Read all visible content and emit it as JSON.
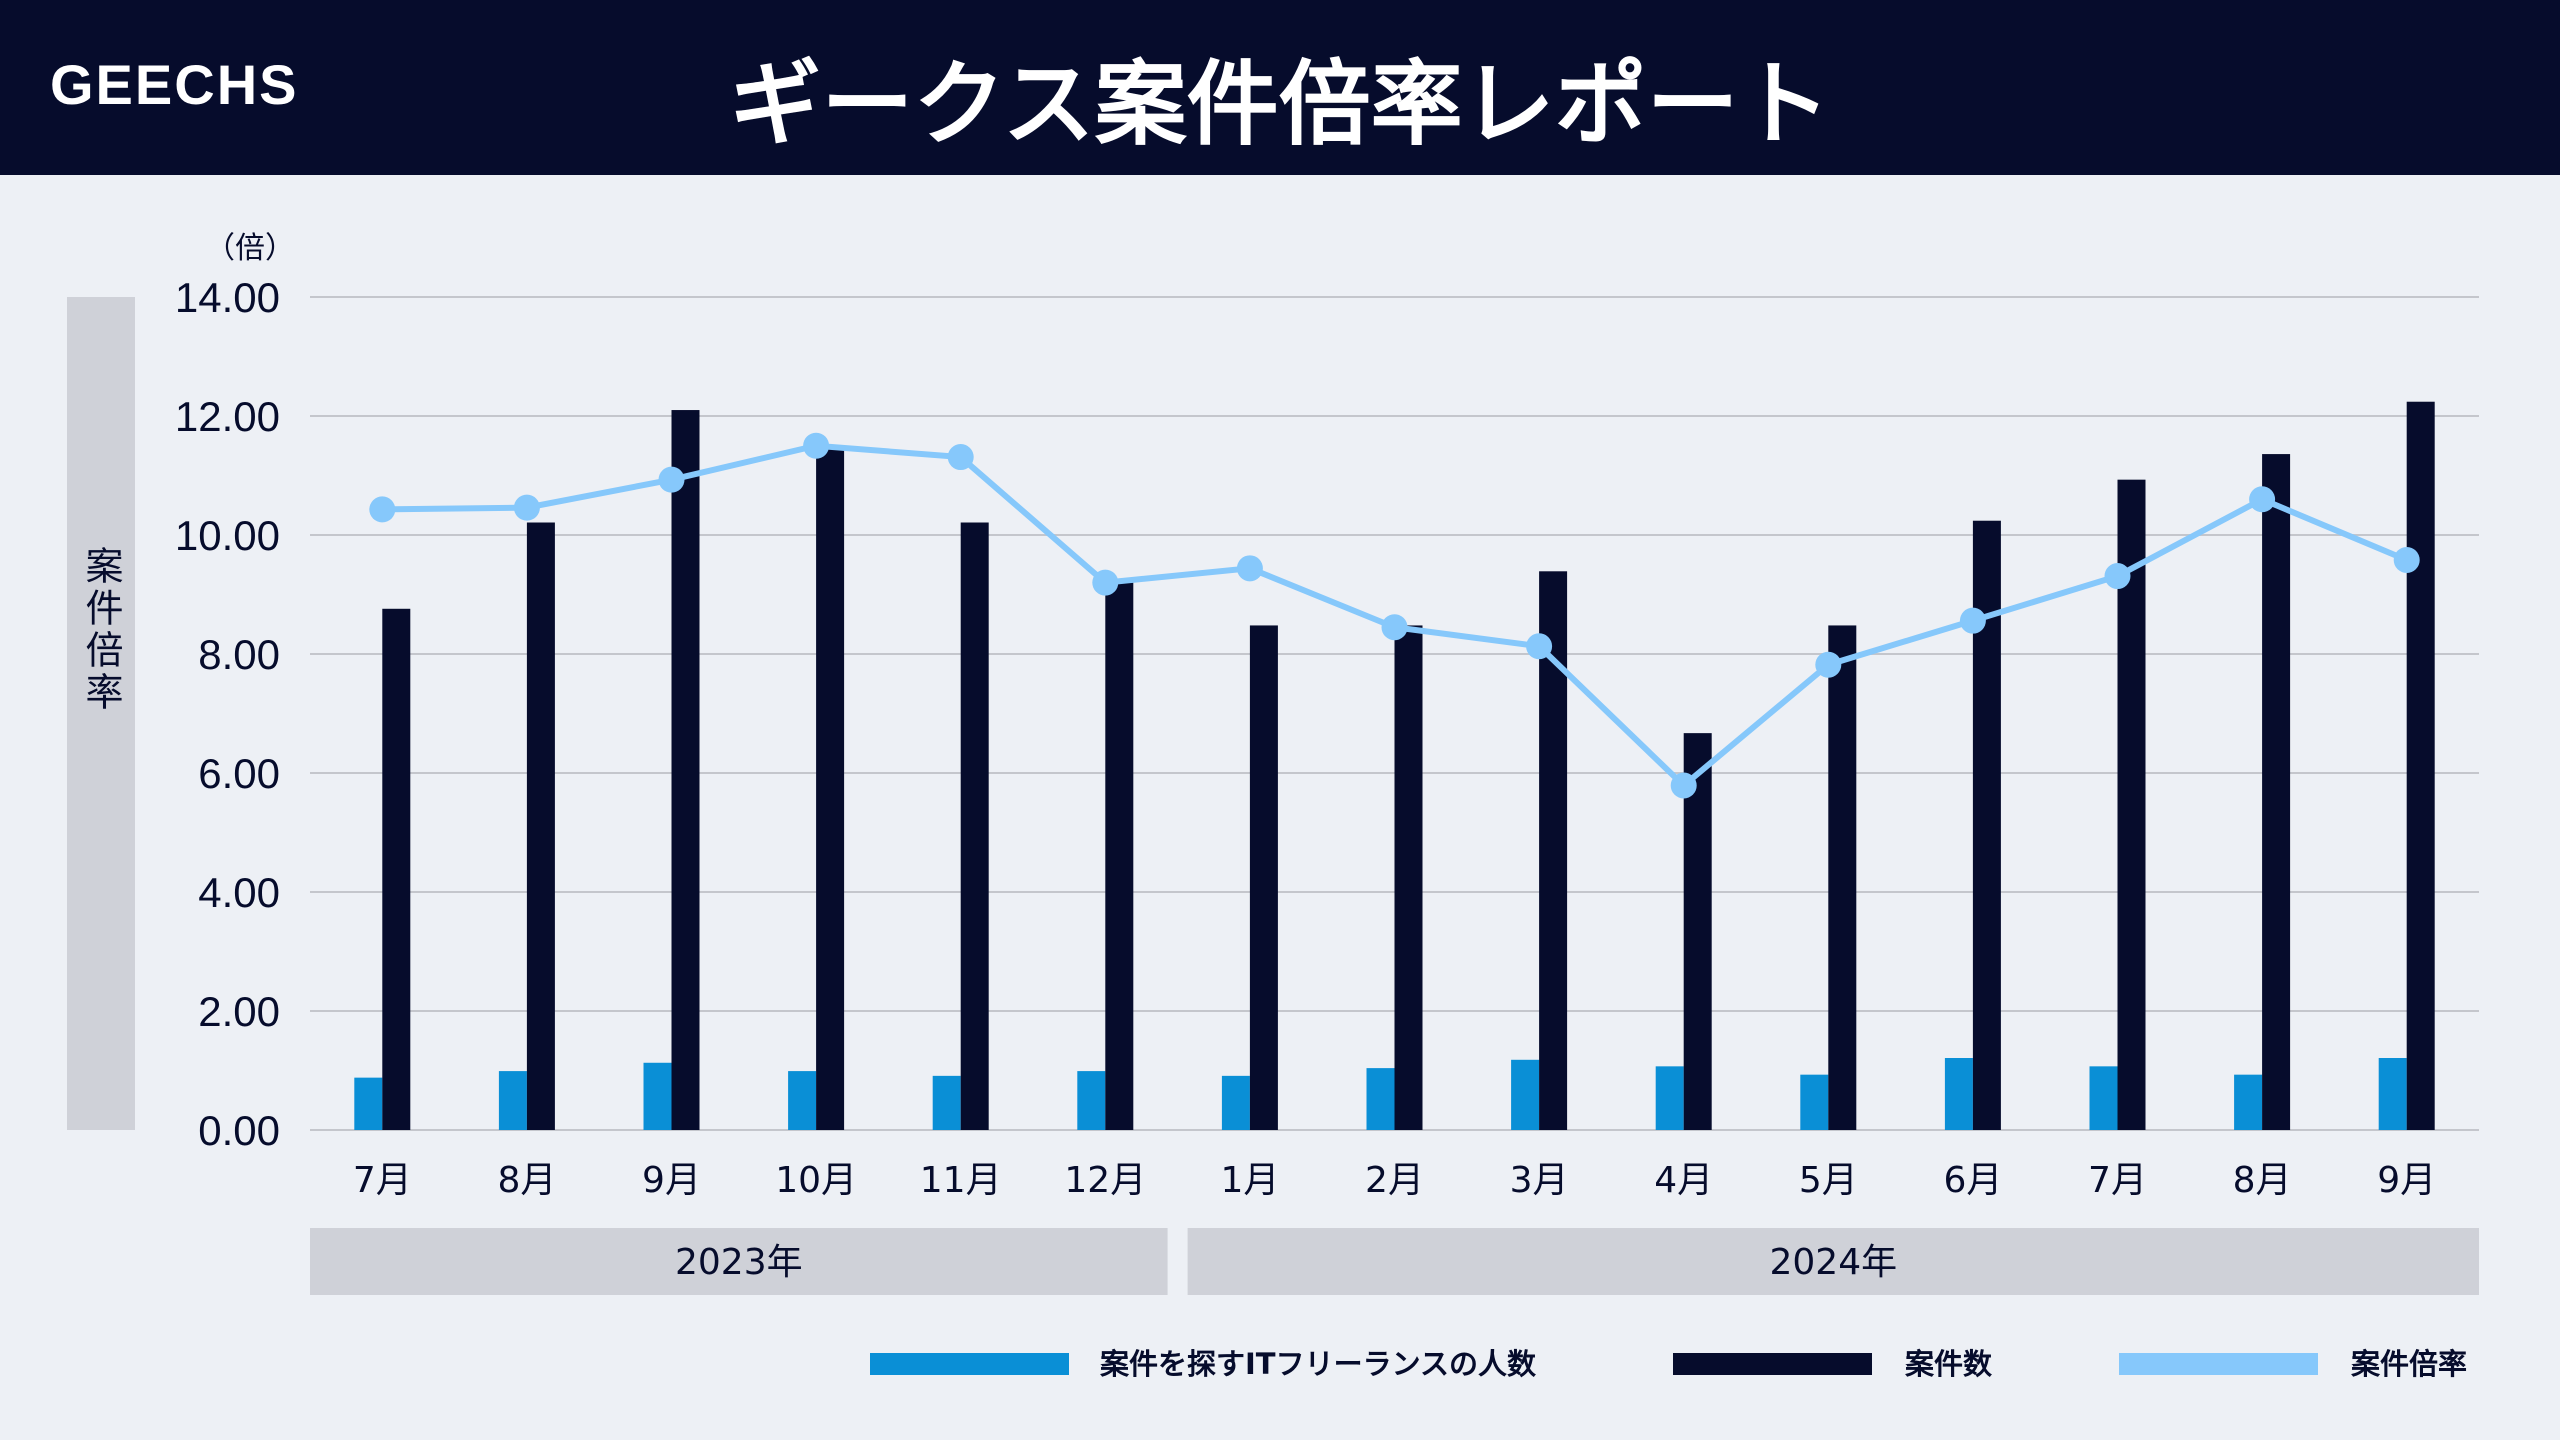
{
  "header": {
    "logo": "GEECHS",
    "title": "ギークス案件倍率レポート"
  },
  "colors": {
    "header_bg": "#060c2c",
    "background": "#edf0f5",
    "people_bar": "#0a8fd6",
    "cases_bar": "#060c2c",
    "ratio_line": "#86c8fb",
    "label_box": "#cfd1d8",
    "grid": "#c4c6cc"
  },
  "chart_data": {
    "type": "bar",
    "title": "",
    "ylabel": "案件倍率",
    "yunit": "（倍）",
    "ylim": [
      0,
      14
    ],
    "yticks": [
      "0.00",
      "2.00",
      "4.00",
      "6.00",
      "8.00",
      "10.00",
      "12.00",
      "14.00"
    ],
    "grid": true,
    "legend_position": "bottom-right",
    "categories": [
      "7月",
      "8月",
      "9月",
      "10月",
      "11月",
      "12月",
      "1月",
      "2月",
      "3月",
      "4月",
      "5月",
      "6月",
      "7月",
      "8月",
      "9月"
    ],
    "year_groups": [
      {
        "label": "2023年",
        "count": 6
      },
      {
        "label": "2024年",
        "count": 9
      }
    ],
    "series": [
      {
        "name": "案件を探すITフリーランスの人数",
        "type": "bar",
        "values": [
          0.88,
          0.99,
          1.13,
          0.99,
          0.91,
          0.99,
          0.91,
          1.04,
          1.18,
          1.07,
          0.93,
          1.21,
          1.07,
          0.93,
          1.21
        ]
      },
      {
        "name": "案件数",
        "type": "bar",
        "values": [
          8.76,
          10.21,
          12.1,
          11.5,
          10.21,
          9.2,
          8.48,
          8.48,
          9.39,
          6.67,
          8.48,
          10.24,
          10.93,
          11.36,
          12.24
        ]
      },
      {
        "name": "案件倍率",
        "type": "line",
        "values": [
          10.43,
          10.46,
          10.93,
          11.5,
          11.31,
          9.2,
          9.44,
          8.45,
          8.13,
          5.79,
          7.82,
          8.56,
          9.31,
          10.6,
          9.58
        ]
      }
    ]
  }
}
